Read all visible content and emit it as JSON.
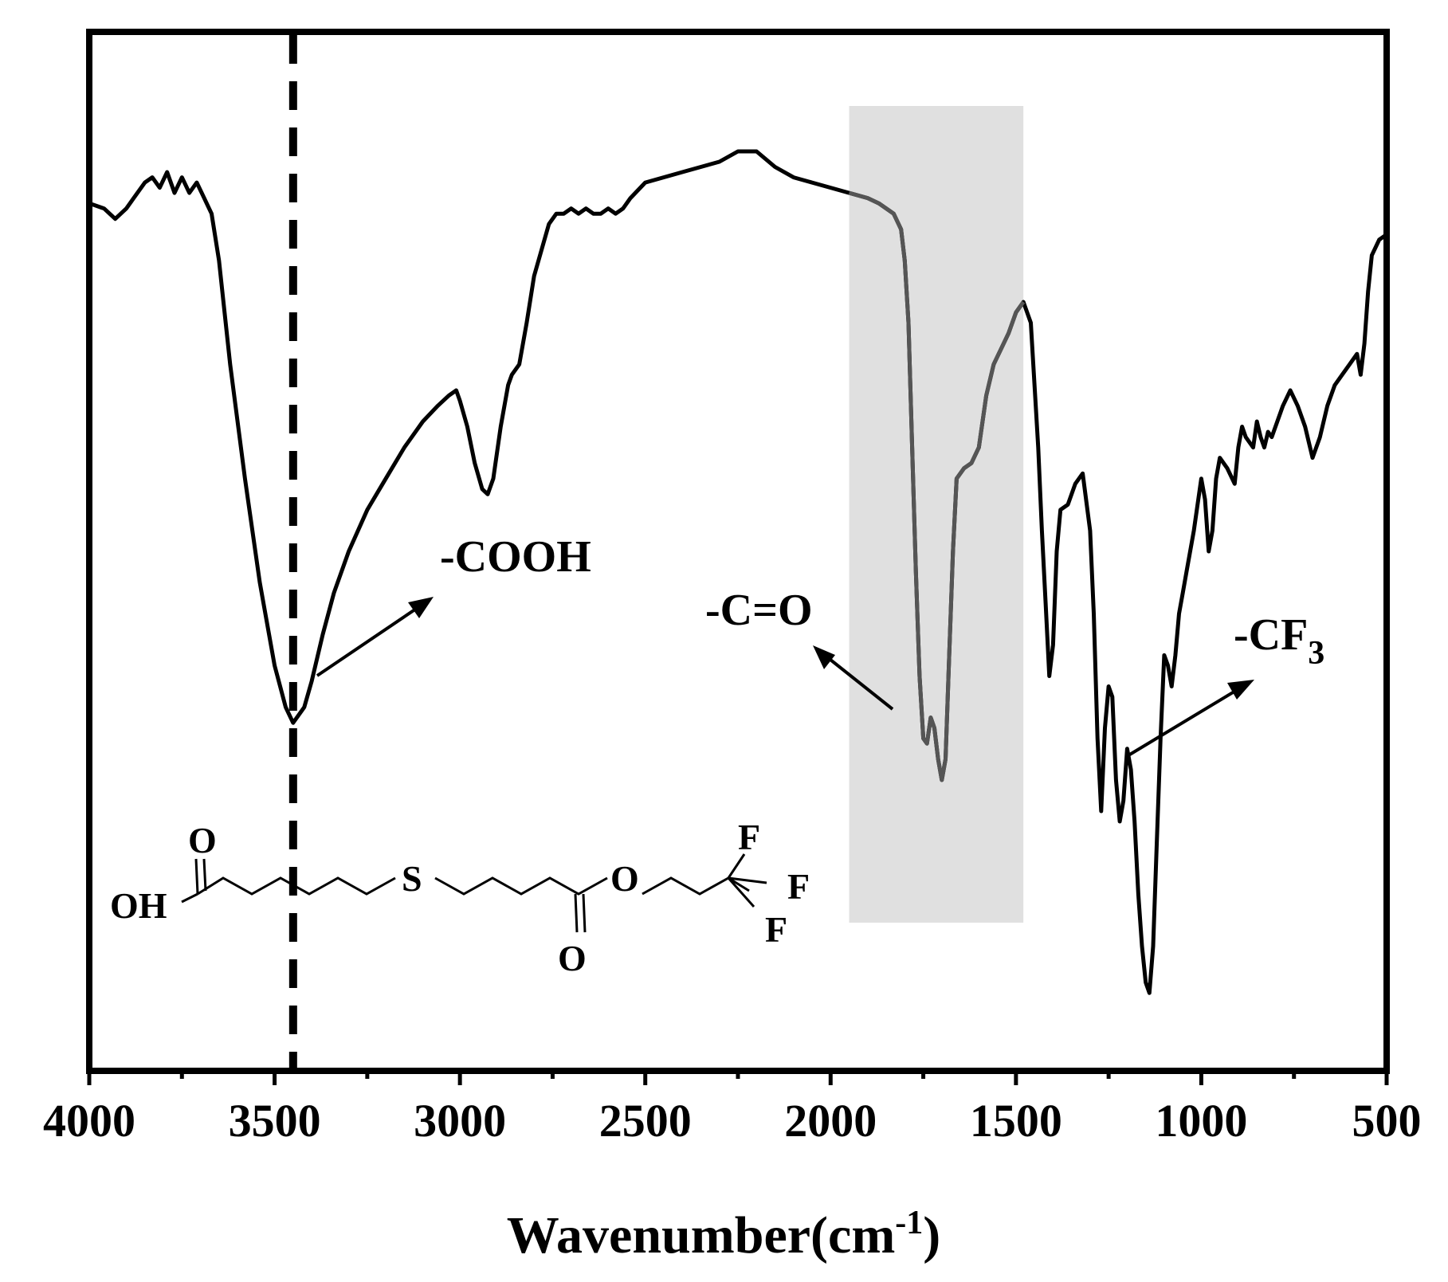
{
  "chart_data": {
    "type": "line",
    "title": "",
    "xlabel": "Wavenumber(cm",
    "xlabel_sup": "-1",
    "xlabel_close": ")",
    "ylabel": "",
    "xlim": [
      4000,
      500
    ],
    "x_reversed": true,
    "y_ticks_shown": false,
    "grid": false,
    "x_ticks": [
      4000,
      3500,
      3000,
      2500,
      2000,
      1500,
      1000,
      500
    ],
    "x_tick_labels": [
      "4000",
      "3500",
      "3000",
      "2500",
      "2000",
      "1500",
      "1000",
      "500"
    ],
    "ylim": [
      0,
      100
    ],
    "series": [
      {
        "color": "#000000",
        "x": [
          4000,
          3960,
          3930,
          3900,
          3880,
          3850,
          3830,
          3810,
          3790,
          3770,
          3750,
          3730,
          3710,
          3690,
          3670,
          3650,
          3620,
          3580,
          3540,
          3500,
          3470,
          3450,
          3420,
          3400,
          3370,
          3340,
          3300,
          3250,
          3200,
          3150,
          3100,
          3060,
          3030,
          3010,
          3000,
          2980,
          2960,
          2940,
          2925,
          2910,
          2890,
          2870,
          2860,
          2840,
          2820,
          2800,
          2780,
          2760,
          2740,
          2720,
          2700,
          2680,
          2660,
          2640,
          2620,
          2600,
          2580,
          2560,
          2540,
          2500,
          2400,
          2300,
          2250,
          2200,
          2150,
          2100,
          2050,
          2000,
          1950,
          1900,
          1870,
          1850,
          1830,
          1810,
          1800,
          1790,
          1780,
          1770,
          1760,
          1750,
          1740,
          1730,
          1720,
          1710,
          1700,
          1690,
          1680,
          1670,
          1660,
          1640,
          1620,
          1600,
          1580,
          1560,
          1540,
          1520,
          1500,
          1480,
          1460,
          1440,
          1430,
          1420,
          1410,
          1400,
          1390,
          1380,
          1360,
          1340,
          1320,
          1300,
          1290,
          1280,
          1270,
          1260,
          1250,
          1240,
          1230,
          1220,
          1210,
          1200,
          1190,
          1180,
          1170,
          1160,
          1150,
          1140,
          1130,
          1120,
          1110,
          1100,
          1090,
          1080,
          1070,
          1060,
          1050,
          1040,
          1020,
          1000,
          990,
          980,
          970,
          960,
          950,
          930,
          910,
          900,
          890,
          880,
          860,
          850,
          840,
          830,
          820,
          810,
          800,
          780,
          760,
          740,
          720,
          700,
          680,
          660,
          640,
          620,
          600,
          580,
          570,
          560,
          550,
          540,
          520,
          500
        ],
        "y": [
          83.5,
          83.0,
          82.0,
          83.0,
          84.0,
          85.5,
          86.0,
          85.0,
          86.5,
          84.5,
          86.0,
          84.5,
          85.5,
          84.0,
          82.5,
          78.0,
          68.0,
          57.0,
          47.0,
          39.0,
          35.0,
          33.5,
          35.0,
          37.5,
          42.0,
          46.0,
          50.0,
          54.0,
          57.0,
          60.0,
          62.5,
          64.0,
          65.0,
          65.5,
          64.5,
          62.0,
          58.5,
          56.0,
          55.5,
          57.0,
          62.0,
          66.0,
          67.0,
          68.0,
          72.0,
          76.5,
          79.0,
          81.5,
          82.5,
          82.5,
          83.0,
          82.5,
          83.0,
          82.5,
          82.5,
          83.0,
          82.5,
          83.0,
          84.0,
          85.5,
          86.5,
          87.5,
          88.5,
          88.5,
          87.0,
          86.0,
          85.5,
          85.0,
          84.5,
          84.0,
          83.5,
          83.0,
          82.5,
          81.0,
          78.0,
          72.0,
          60.0,
          48.0,
          38.0,
          32.0,
          31.5,
          34.0,
          33.0,
          30.0,
          28.0,
          30.0,
          40.0,
          50.0,
          57.0,
          58.0,
          58.5,
          60.0,
          65.0,
          68.0,
          69.5,
          71.0,
          73.0,
          74.0,
          72.0,
          60.0,
          52.0,
          45.0,
          38.0,
          41.0,
          50.0,
          54.0,
          54.5,
          56.5,
          57.5,
          52.0,
          44.0,
          32.0,
          25.0,
          33.0,
          37.0,
          36.0,
          28.0,
          24.0,
          26.0,
          31.0,
          29.0,
          24.0,
          17.0,
          12.0,
          8.5,
          7.5,
          12.0,
          22.0,
          32.0,
          40.0,
          39.0,
          37.0,
          40.0,
          44.0,
          46.0,
          48.0,
          52.0,
          57.0,
          55.0,
          50.0,
          52.0,
          57.0,
          59.0,
          58.0,
          56.5,
          60.0,
          62.0,
          61.0,
          60.0,
          62.5,
          61.0,
          60.0,
          61.5,
          61.0,
          62.0,
          64.0,
          65.5,
          64.0,
          62.0,
          59.0,
          61.0,
          64.0,
          66.0,
          67.0,
          68.0,
          69.0,
          67.0,
          70.0,
          75.0,
          78.5,
          80.0,
          80.5
        ]
      }
    ],
    "shaded_band": {
      "x_from": 1950,
      "x_to": 1480,
      "color": "#e0e0e0"
    },
    "dashed_line": {
      "x": 3450
    },
    "annotations": [
      {
        "text": "-COOH"
      },
      {
        "text": "-C=O"
      },
      {
        "text": "-CF",
        "sub": "3"
      }
    ],
    "structure_labels": {
      "oh": "OH",
      "o_top": "O",
      "s": "S",
      "o_ester": "O",
      "o_bottom": "O",
      "f1": "F",
      "f2": "F",
      "f3": "F"
    }
  }
}
